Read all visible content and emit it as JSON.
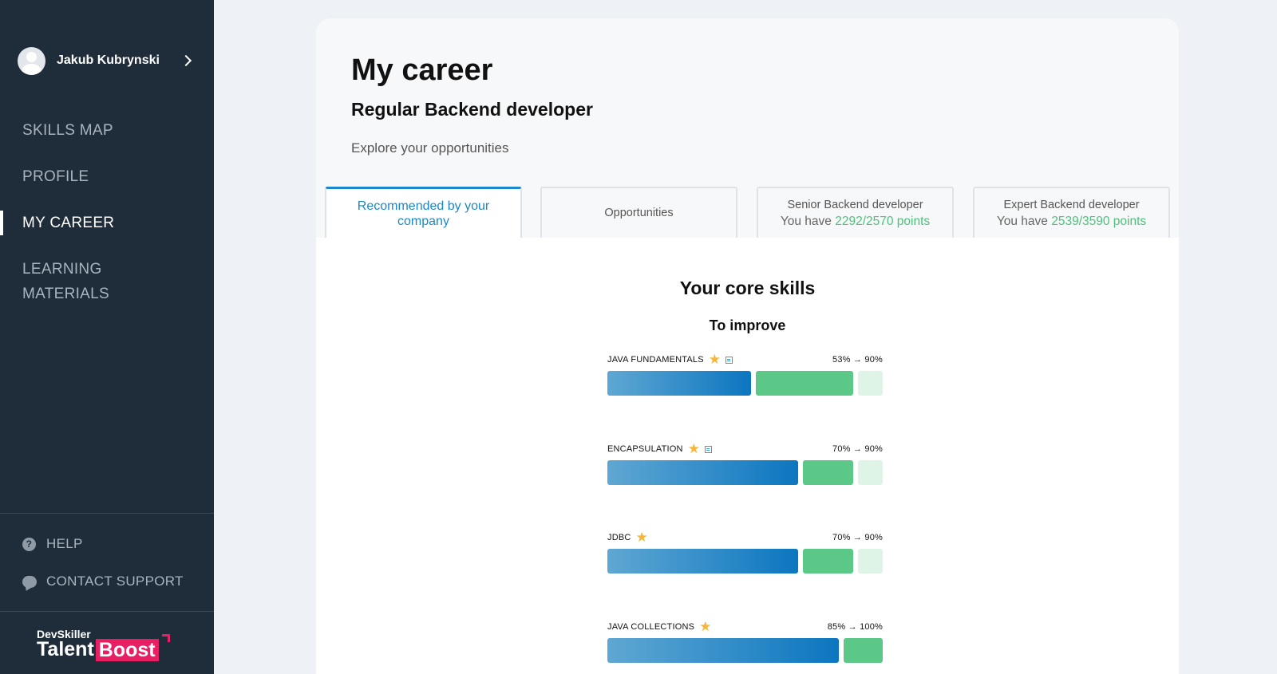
{
  "sidebar": {
    "user_name": "Jakub Kubrynski",
    "nav": [
      "SKILLS MAP",
      "PROFILE",
      "MY CAREER",
      "LEARNING MATERIALS"
    ],
    "help": "HELP",
    "support": "CONTACT SUPPORT",
    "brand_top": "DevSkiller",
    "brand_talent": "Talent",
    "brand_boost": "Boost"
  },
  "main": {
    "title": "My career",
    "role": "Regular Backend developer",
    "subtitle": "Explore your opportunities",
    "tabs": [
      {
        "label": "Recommended by your company",
        "active": true
      },
      {
        "label": "Opportunities",
        "active": false
      },
      {
        "label": "Senior Backend developer",
        "sub_prefix": "You have ",
        "points": "2292/2570 points"
      },
      {
        "label": "Expert Backend developer",
        "sub_prefix": "You have ",
        "points": "2539/3590 points"
      }
    ],
    "section_title": "Your core skills",
    "section_sub": "To improve",
    "skills": [
      {
        "name": "JAVA FUNDAMENTALS",
        "starred": true,
        "has_material": true,
        "pct_label": "53% → 90%",
        "current": 53,
        "target": 90
      },
      {
        "name": "ENCAPSULATION",
        "starred": true,
        "has_material": true,
        "pct_label": "70% → 90%",
        "current": 70,
        "target": 90
      },
      {
        "name": "JDBC",
        "starred": true,
        "has_material": false,
        "pct_label": "70% → 90%",
        "current": 70,
        "target": 90
      },
      {
        "name": "JAVA COLLECTIONS",
        "starred": true,
        "has_material": false,
        "pct_label": "85% → 100%",
        "current": 85,
        "target": 100
      }
    ]
  },
  "colors": {
    "sidebar_bg": "#1f2d3a",
    "accent_blue": "#1a88c9",
    "points_green": "#4dc27b",
    "bar_gap": "#5bc887",
    "bar_rest": "#ddf4e6",
    "star": "#f5b63a",
    "brand_pink": "#e91f63"
  }
}
